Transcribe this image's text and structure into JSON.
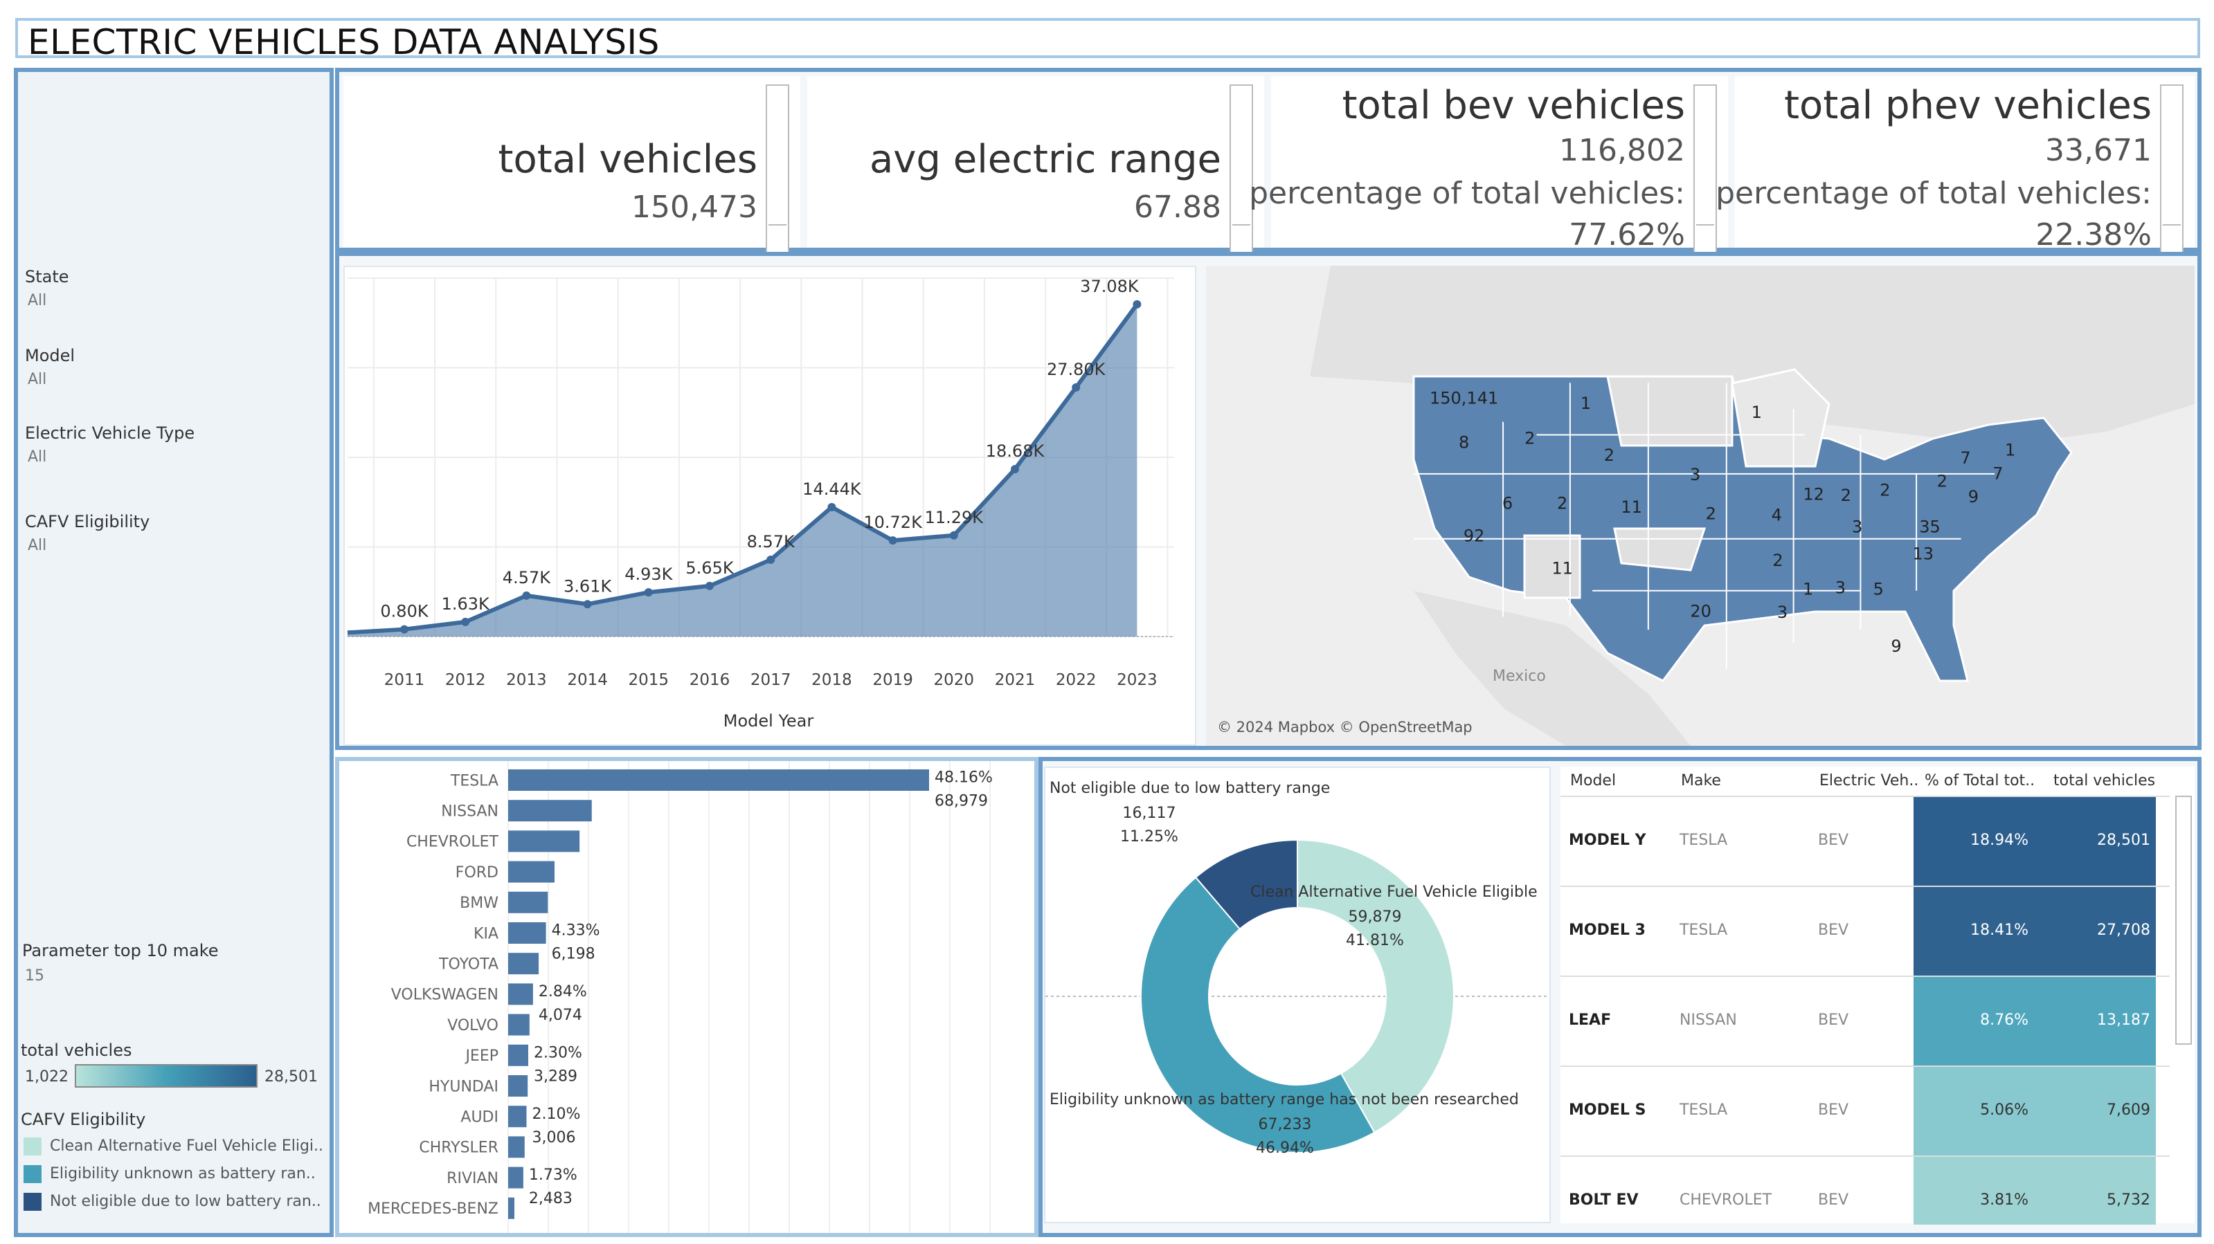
{
  "title": "ELECTRIC VEHICLES DATA ANALYSIS",
  "filters": [
    {
      "label": "State",
      "value": "All"
    },
    {
      "label": "Model",
      "value": "All"
    },
    {
      "label": "Electric Vehicle Type",
      "value": "All"
    },
    {
      "label": "CAFV Eligibility",
      "value": "All"
    }
  ],
  "parameter": {
    "label": "Parameter top 10 make",
    "value": "15"
  },
  "color_legend": {
    "label": "total vehicles",
    "min": "1,022",
    "max": "28,501",
    "colors": [
      "#b9e3da",
      "#2c5f8e"
    ]
  },
  "cafv_legend": {
    "label": "CAFV Eligibility",
    "items": [
      {
        "label": "Clean Alternative Fuel Vehicle Eligi..",
        "color": "#b9e3da"
      },
      {
        "label": "Eligibility unknown as battery ran..",
        "color": "#44a0b8"
      },
      {
        "label": "Not eligible due to low battery ran..",
        "color": "#2c5282"
      }
    ]
  },
  "kpis": {
    "total": {
      "title": "total vehicles",
      "value": "150,473"
    },
    "range": {
      "title": "avg electric range",
      "value": "67.88"
    },
    "bev": {
      "title": "total bev vehicles",
      "value": "116,802",
      "pct_label": "percentage of total vehicles:",
      "pct": "77.62%"
    },
    "phev": {
      "title": "total phev vehicles",
      "value": "33,671",
      "pct_label": "percentage of total vehicles:",
      "pct": "22.38%"
    }
  },
  "line_chart": {
    "xlabel": "Model Year",
    "chart_data": {
      "type": "area",
      "x": [
        "2011",
        "2012",
        "2013",
        "2014",
        "2015",
        "2016",
        "2017",
        "2018",
        "2019",
        "2020",
        "2021",
        "2022",
        "2023"
      ],
      "values": [
        0.8,
        1.63,
        4.57,
        3.61,
        4.93,
        5.65,
        8.57,
        14.44,
        10.72,
        11.29,
        18.68,
        27.8,
        37.08
      ],
      "labels": [
        "0.80K",
        "1.63K",
        "4.57K",
        "3.61K",
        "4.93K",
        "5.65K",
        "8.57K",
        "14.44K",
        "10.72K",
        "11.29K",
        "18.68K",
        "27.80K",
        "37.08K"
      ],
      "xlabel": "Model Year",
      "ylabel": "",
      "ylim": [
        0,
        40
      ],
      "color": "#5b84b1"
    }
  },
  "map": {
    "credit": "© 2024 Mapbox © OpenStreetMap",
    "country_label": "Mexico",
    "state_labels": [
      {
        "text": "150,141",
        "lat": 47.4,
        "lon": -120.5
      },
      {
        "text": "8",
        "lat": 44.0,
        "lon": -120.5
      },
      {
        "text": "2",
        "lat": 44.3,
        "lon": -114.6
      },
      {
        "text": "1",
        "lat": 47.0,
        "lon": -109.6
      },
      {
        "text": "2",
        "lat": 43.0,
        "lon": -107.5
      },
      {
        "text": "6",
        "lat": 39.3,
        "lon": -116.6
      },
      {
        "text": "92",
        "lat": 36.8,
        "lon": -119.6
      },
      {
        "text": "2",
        "lat": 39.3,
        "lon": -111.7
      },
      {
        "text": "11",
        "lat": 39.0,
        "lon": -105.5
      },
      {
        "text": "11",
        "lat": 34.3,
        "lon": -111.7
      },
      {
        "text": "3",
        "lat": 41.5,
        "lon": -99.8
      },
      {
        "text": "2",
        "lat": 38.5,
        "lon": -98.4
      },
      {
        "text": "20",
        "lat": 31.0,
        "lon": -99.3
      },
      {
        "text": "1",
        "lat": 46.3,
        "lon": -94.3
      },
      {
        "text": "4",
        "lat": 38.4,
        "lon": -92.5
      },
      {
        "text": "2",
        "lat": 34.9,
        "lon": -92.4
      },
      {
        "text": "3",
        "lat": 30.9,
        "lon": -92.0
      },
      {
        "text": "12",
        "lat": 40.0,
        "lon": -89.2
      },
      {
        "text": "2",
        "lat": 39.9,
        "lon": -86.3
      },
      {
        "text": "2",
        "lat": 40.3,
        "lon": -82.8
      },
      {
        "text": "3",
        "lat": 37.5,
        "lon": -85.3
      },
      {
        "text": "1",
        "lat": 32.7,
        "lon": -89.7
      },
      {
        "text": "3",
        "lat": 32.8,
        "lon": -86.8
      },
      {
        "text": "5",
        "lat": 32.7,
        "lon": -83.4
      },
      {
        "text": "9",
        "lat": 28.3,
        "lon": -81.8
      },
      {
        "text": "13",
        "lat": 35.4,
        "lon": -79.4
      },
      {
        "text": "35",
        "lat": 37.5,
        "lon": -78.8
      },
      {
        "text": "2",
        "lat": 41.0,
        "lon": -77.7
      },
      {
        "text": "9",
        "lat": 39.8,
        "lon": -74.9
      },
      {
        "text": "7",
        "lat": 42.8,
        "lon": -75.6
      },
      {
        "text": "7",
        "lat": 41.6,
        "lon": -72.7
      },
      {
        "text": "1",
        "lat": 43.4,
        "lon": -71.6
      }
    ]
  },
  "bar_chart": {
    "chart_data": {
      "type": "bar",
      "orientation": "horizontal",
      "categories": [
        "TESLA",
        "NISSAN",
        "CHEVROLET",
        "FORD",
        "BMW",
        "KIA",
        "TOYOTA",
        "VOLKSWAGEN",
        "VOLVO",
        "JEEP",
        "HYUNDAI",
        "AUDI",
        "CHRYSLER",
        "RIVIAN",
        "MERCEDES-BENZ"
      ],
      "values": [
        68979,
        13700,
        11700,
        7600,
        6500,
        6198,
        5000,
        4074,
        3500,
        3289,
        3200,
        3006,
        2700,
        2483,
        1022
      ],
      "annotations": [
        {
          "category": "TESLA",
          "pct": "48.16%",
          "value": "68,979"
        },
        {
          "category": "KIA",
          "pct": "4.33%",
          "value": "6,198"
        },
        {
          "category": "VOLKSWAGEN",
          "pct": "2.84%",
          "value": "4,074"
        },
        {
          "category": "JEEP",
          "pct": "2.30%",
          "value": "3,289"
        },
        {
          "category": "AUDI",
          "pct": "2.10%",
          "value": "3,006"
        },
        {
          "category": "RIVIAN",
          "pct": "1.73%",
          "value": "2,483"
        }
      ],
      "color": "#4e79a7"
    }
  },
  "donut_chart": {
    "chart_data": {
      "type": "pie",
      "slices": [
        {
          "label": "Clean Alternative Fuel Vehicle Eligible",
          "value": 59879,
          "value_label": "59,879",
          "pct": "41.81%",
          "color": "#b9e3da"
        },
        {
          "label": "Eligibility unknown as battery range has not been researched",
          "value": 67233,
          "value_label": "67,233",
          "pct": "46.94%",
          "color": "#44a0b8"
        },
        {
          "label": "Not eligible due to low battery range",
          "value": 16117,
          "value_label": "16,117",
          "pct": "11.25%",
          "color": "#2c5282"
        }
      ]
    }
  },
  "table": {
    "headers": [
      "Model",
      "Make",
      "Electric Veh..",
      "% of Total tot..",
      "total vehicles"
    ],
    "rows": [
      {
        "model": "MODEL Y",
        "make": "TESLA",
        "type": "BEV",
        "pct": "18.94%",
        "total": "28,501",
        "color": "#2c5f8e"
      },
      {
        "model": "MODEL 3",
        "make": "TESLA",
        "type": "BEV",
        "pct": "18.41%",
        "total": "27,708",
        "color": "#30628f"
      },
      {
        "model": "LEAF",
        "make": "NISSAN",
        "type": "BEV",
        "pct": "8.76%",
        "total": "13,187",
        "color": "#4fa6bd"
      },
      {
        "model": "MODEL S",
        "make": "TESLA",
        "type": "BEV",
        "pct": "5.06%",
        "total": "7,609",
        "color": "#87c9cf"
      },
      {
        "model": "BOLT EV",
        "make": "CHEVROLET",
        "type": "BEV",
        "pct": "3.81%",
        "total": "5,732",
        "color": "#9dd4d3"
      }
    ]
  }
}
